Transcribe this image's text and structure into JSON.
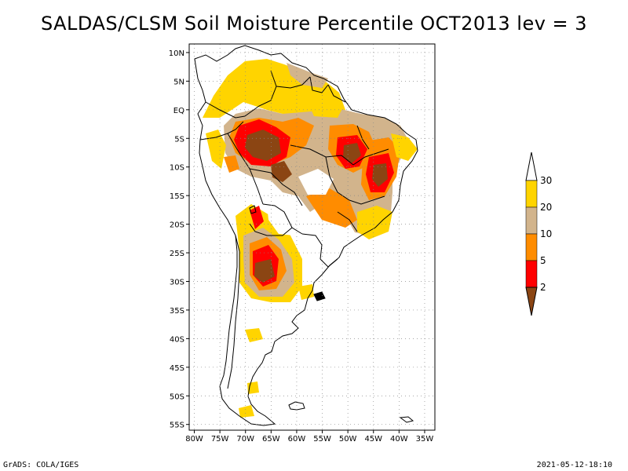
{
  "title": "SALDAS/CLSM Soil Moisture Percentile OCT2013 lev = 3",
  "footer": {
    "left": "GrADS: COLA/IGES",
    "right": "2021-05-12-18:10"
  },
  "map": {
    "lat_labels": [
      "10N",
      "5N",
      "EQ",
      "5S",
      "10S",
      "15S",
      "20S",
      "25S",
      "30S",
      "35S",
      "40S",
      "45S",
      "50S",
      "55S"
    ],
    "lat_values": [
      10,
      5,
      0,
      -5,
      -10,
      -15,
      -20,
      -25,
      -30,
      -35,
      -40,
      -45,
      -50,
      -55
    ],
    "lon_labels": [
      "80W",
      "75W",
      "70W",
      "65W",
      "60W",
      "55W",
      "50W",
      "45W",
      "40W",
      "35W"
    ],
    "lon_values": [
      -80,
      -75,
      -70,
      -65,
      -60,
      -55,
      -50,
      -45,
      -40,
      -35
    ],
    "lat_range": [
      -56,
      11.5
    ],
    "lon_range": [
      -81,
      -33
    ],
    "grid": true
  },
  "legend": {
    "levels": [
      "30",
      "20",
      "10",
      "5",
      "2"
    ],
    "colors": [
      "#ffd400",
      "#d2b48c",
      "#ff8c00",
      "#ff0000",
      "#8b4513"
    ],
    "top_arrow_color": "#ffffff",
    "bottom_arrow_color": "#8b4513"
  },
  "colors": {
    "dark": "#8b4513",
    "red": "#ff0000",
    "orange": "#ff8c00",
    "tan": "#d2b48c",
    "yellow": "#ffd400"
  }
}
